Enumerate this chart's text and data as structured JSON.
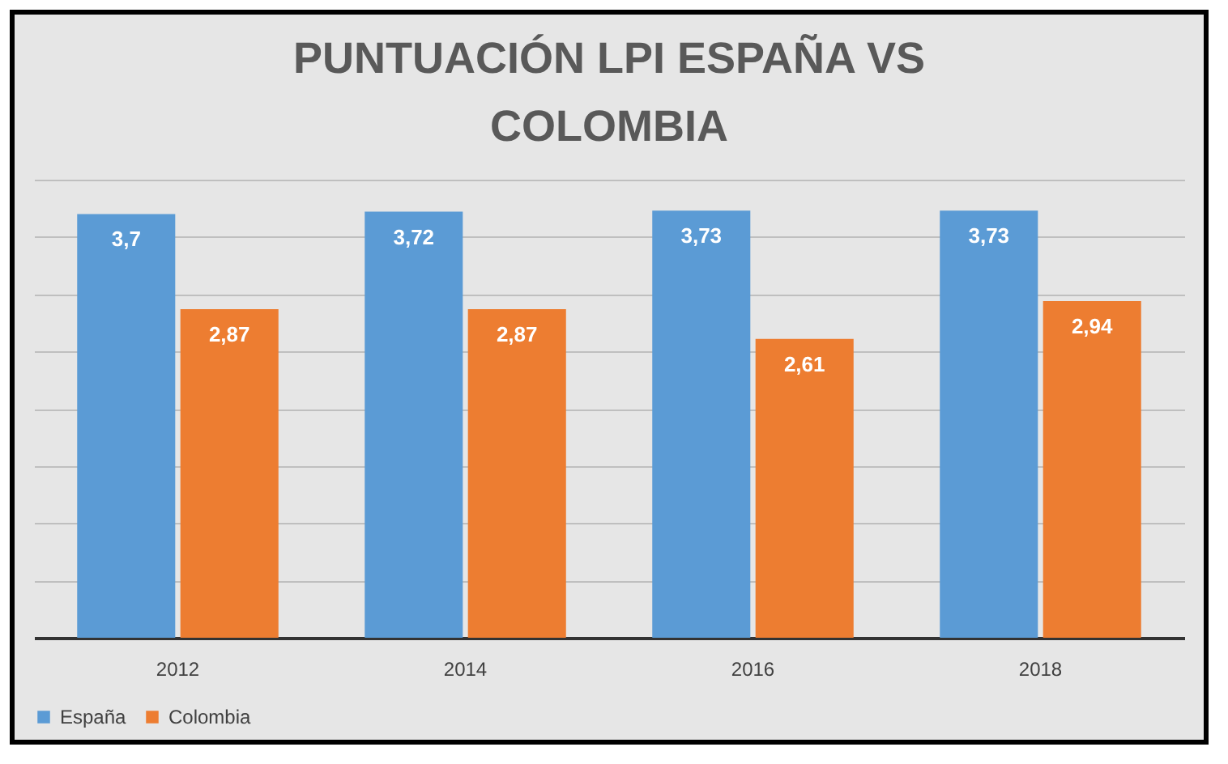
{
  "chart_data": {
    "type": "bar",
    "title": "PUNTUACIÓN LPI ESPAÑA VS COLOMBIA",
    "categories": [
      "2012",
      "2014",
      "2016",
      "2018"
    ],
    "series": [
      {
        "name": "España",
        "color": "#5b9bd5",
        "values": [
          3.7,
          3.72,
          3.73,
          3.73
        ],
        "value_labels": [
          "3,7",
          "3,72",
          "3,73",
          "3,73"
        ]
      },
      {
        "name": "Colombia",
        "color": "#ed7d31",
        "values": [
          2.87,
          2.87,
          2.61,
          2.94
        ],
        "value_labels": [
          "2,87",
          "2,87",
          "2,61",
          "2,94"
        ]
      }
    ],
    "grid": "y",
    "legend": "bottom",
    "tick_labels": "x"
  }
}
